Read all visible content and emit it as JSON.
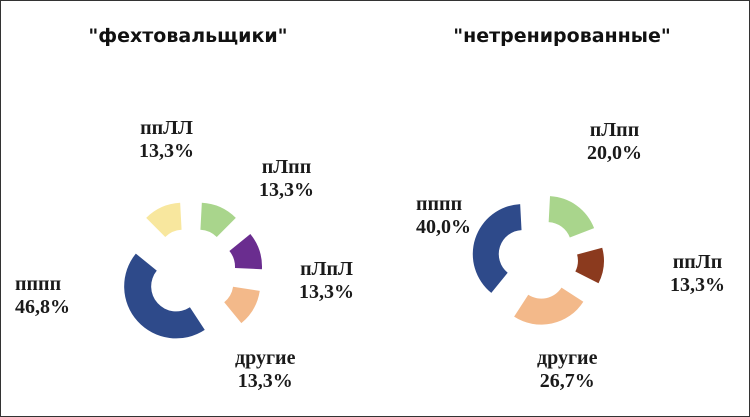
{
  "chart_data": [
    {
      "type": "pie",
      "variant": "exploded-donut",
      "title": "\"фехтовальщики\"",
      "slices": [
        {
          "label": "ппЛЛ",
          "value_text": "13,3%",
          "value": 13.3,
          "color": "#f8e79e"
        },
        {
          "label": "пЛпп",
          "value_text": "13,3%",
          "value": 13.3,
          "color": "#a9d58c"
        },
        {
          "label": "пЛпЛ",
          "value_text": "13,3%",
          "value": 13.3,
          "color": "#6a2d8f"
        },
        {
          "label": "другие",
          "value_text": "13,3%",
          "value": 13.3,
          "color": "#f3b98a"
        },
        {
          "label": "пппп",
          "value_text": "46,8%",
          "value": 46.8,
          "color": "#2e4a8a"
        }
      ]
    },
    {
      "type": "pie",
      "variant": "exploded-donut",
      "title": "\"нетренированные\"",
      "slices": [
        {
          "label": "пЛпп",
          "value_text": "20,0%",
          "value": 20.0,
          "color": "#a9d58c"
        },
        {
          "label": "ппЛп",
          "value_text": "13,3%",
          "value": 13.3,
          "color": "#8b3a1e"
        },
        {
          "label": "другие",
          "value_text": "26,7%",
          "value": 26.7,
          "color": "#f3b98a"
        },
        {
          "label": "пппп",
          "value_text": "40,0%",
          "value": 40.0,
          "color": "#2e4a8a"
        }
      ]
    }
  ]
}
